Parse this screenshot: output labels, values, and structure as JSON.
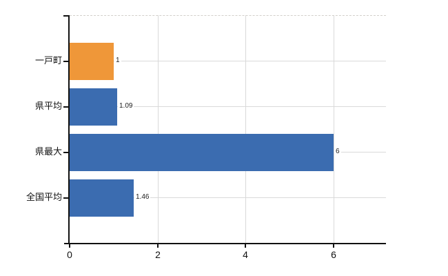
{
  "chart_data": {
    "type": "bar",
    "orientation": "horizontal",
    "title": "",
    "categories": [
      "一戸町",
      "県平均",
      "県最大",
      "全国平均"
    ],
    "values": [
      1,
      1.09,
      6,
      1.46
    ],
    "value_labels": [
      "1",
      "1.09",
      "6",
      "1.46"
    ],
    "bar_colors": [
      "#ef9739",
      "#3b6cb0",
      "#3b6cb0",
      "#3b6cb0"
    ],
    "highlight_color": "#ef9739",
    "default_color": "#3b6cb0",
    "x_tick_labels": [
      "0",
      "2",
      "4",
      "6"
    ],
    "x_tick_values": [
      0,
      2,
      4,
      6
    ],
    "xlim": [
      0,
      7.2
    ],
    "grid": true,
    "legend": false,
    "gridline_color": "#d9d9d9",
    "axis_color": "#111111",
    "text_color": "#111111",
    "background": "#ffffff"
  }
}
